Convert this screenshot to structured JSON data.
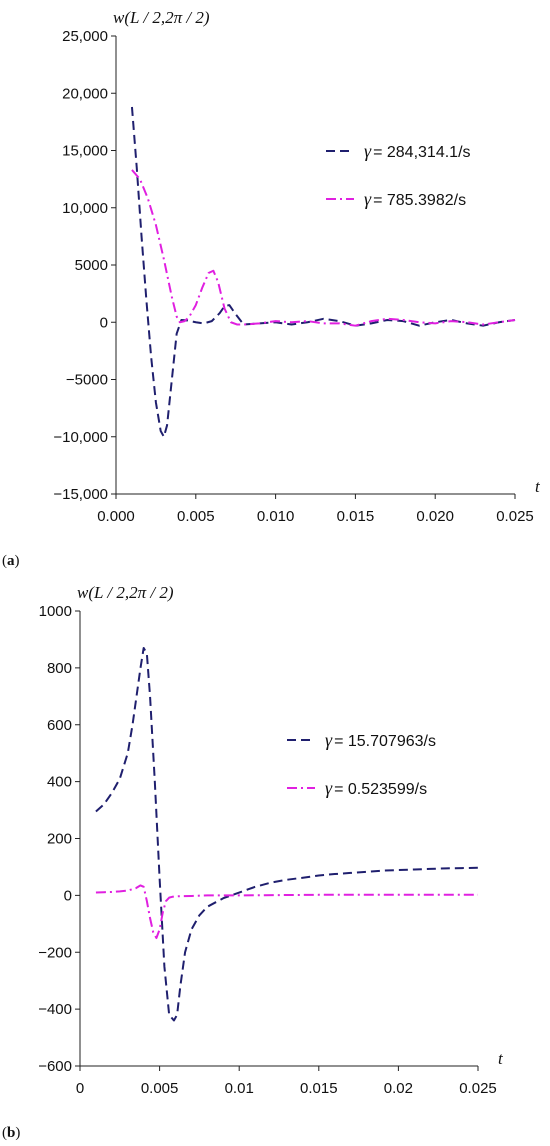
{
  "chart_data": [
    {
      "type": "line",
      "panel": "a",
      "ylabel": "w(L / 2,2π / 2)",
      "xlabel": "t",
      "xlim": [
        0,
        0.025
      ],
      "ylim": [
        -15000,
        25000
      ],
      "xticks": [
        0.0,
        0.005,
        0.01,
        0.015,
        0.02,
        0.025
      ],
      "xtick_labels": [
        "0.000",
        "0.005",
        "0.010",
        "0.015",
        "0.020",
        "0.025"
      ],
      "yticks": [
        -15000,
        -10000,
        -5000,
        0,
        5000,
        10000,
        15000,
        20000,
        25000
      ],
      "ytick_labels": [
        "−15,000",
        "−10,000",
        "−5000",
        "0",
        "5000",
        "10,000",
        "15,000",
        "20,000",
        "25,000"
      ],
      "legend_position": "right",
      "series": [
        {
          "name": "γ = 284,314.1/s",
          "symbol": "γ",
          "label_rest": "= 284,314.1/s",
          "color": "#1f1f6e",
          "dash": "dashed",
          "x": [
            0.001,
            0.0013,
            0.0016,
            0.0019,
            0.0022,
            0.0025,
            0.0028,
            0.003,
            0.0032,
            0.0035,
            0.0038,
            0.0041,
            0.0045,
            0.005,
            0.0055,
            0.006,
            0.0065,
            0.0068,
            0.0071,
            0.0075,
            0.008,
            0.009,
            0.01,
            0.011,
            0.012,
            0.013,
            0.014,
            0.015,
            0.016,
            0.017,
            0.018,
            0.019,
            0.02,
            0.021,
            0.022,
            0.023,
            0.024,
            0.025
          ],
          "y": [
            18800,
            13500,
            7500,
            2000,
            -3000,
            -7000,
            -9500,
            -10000,
            -9000,
            -5000,
            -1000,
            200,
            150,
            0,
            -100,
            100,
            800,
            1400,
            1500,
            700,
            -200,
            -100,
            0,
            -200,
            0,
            300,
            100,
            -300,
            -100,
            200,
            100,
            -300,
            0,
            200,
            -100,
            -300,
            0,
            200
          ]
        },
        {
          "name": "γ = 785.3982/s",
          "symbol": "γ",
          "label_rest": "= 785.3982/s",
          "color": "#e020e0",
          "dash": "dashdot",
          "x": [
            0.001,
            0.0015,
            0.002,
            0.0025,
            0.003,
            0.0035,
            0.0038,
            0.004,
            0.0043,
            0.0046,
            0.005,
            0.0054,
            0.0058,
            0.0061,
            0.0064,
            0.0068,
            0.0072,
            0.0076,
            0.008,
            0.009,
            0.01,
            0.011,
            0.012,
            0.013,
            0.014,
            0.015,
            0.016,
            0.017,
            0.018,
            0.019,
            0.02,
            0.021,
            0.022,
            0.023,
            0.024,
            0.025
          ],
          "y": [
            13300,
            12500,
            10800,
            8500,
            5500,
            2200,
            500,
            0,
            100,
            500,
            1500,
            3000,
            4300,
            4500,
            3500,
            1200,
            0,
            -200,
            -200,
            -100,
            100,
            0,
            100,
            -100,
            -100,
            -300,
            100,
            300,
            200,
            0,
            -100,
            100,
            0,
            -200,
            0,
            200
          ]
        }
      ]
    },
    {
      "type": "line",
      "panel": "b",
      "ylabel": "w(L / 2,2π / 2)",
      "xlabel": "t",
      "xlim": [
        0,
        0.025
      ],
      "ylim": [
        -600,
        1000
      ],
      "xticks": [
        0,
        0.005,
        0.01,
        0.015,
        0.02,
        0.025
      ],
      "xtick_labels": [
        "0",
        "0.005",
        "0.01",
        "0.015",
        "0.02",
        "0.025"
      ],
      "yticks": [
        -600,
        -400,
        -200,
        0,
        200,
        400,
        600,
        800,
        1000
      ],
      "ytick_labels": [
        "−600",
        "−400",
        "−200",
        "0",
        "200",
        "400",
        "600",
        "800",
        "1000"
      ],
      "legend_position": "right",
      "series": [
        {
          "name": "γ = 15.707963/s",
          "symbol": "γ",
          "label_rest": "= 15.707963/s",
          "color": "#1f1f6e",
          "dash": "dashed",
          "x": [
            0.001,
            0.0015,
            0.002,
            0.0025,
            0.003,
            0.0033,
            0.0036,
            0.0038,
            0.004,
            0.0042,
            0.0044,
            0.0047,
            0.005,
            0.0053,
            0.0056,
            0.0059,
            0.0061,
            0.0063,
            0.0066,
            0.007,
            0.0075,
            0.008,
            0.009,
            0.01,
            0.011,
            0.012,
            0.013,
            0.014,
            0.015,
            0.016,
            0.017,
            0.018,
            0.019,
            0.02,
            0.021,
            0.022,
            0.023,
            0.024,
            0.025
          ],
          "y": [
            295,
            320,
            360,
            410,
            500,
            600,
            720,
            800,
            870,
            850,
            700,
            400,
            60,
            -250,
            -420,
            -440,
            -420,
            -320,
            -200,
            -120,
            -70,
            -40,
            -10,
            10,
            30,
            45,
            55,
            62,
            70,
            75,
            79,
            83,
            87,
            89,
            91,
            93,
            95,
            96,
            97
          ]
        },
        {
          "name": "γ = 0.523599/s",
          "symbol": "γ",
          "label_rest": "= 0.523599/s",
          "color": "#e020e0",
          "dash": "dashdot",
          "x": [
            0.001,
            0.0015,
            0.002,
            0.0025,
            0.003,
            0.0035,
            0.0038,
            0.004,
            0.0042,
            0.0044,
            0.0046,
            0.0048,
            0.005,
            0.0052,
            0.0054,
            0.0056,
            0.0058,
            0.0062,
            0.007,
            0.008,
            0.01,
            0.015,
            0.02,
            0.025
          ],
          "y": [
            10,
            11,
            12,
            14,
            17,
            25,
            35,
            30,
            -20,
            -80,
            -130,
            -150,
            -120,
            -60,
            -20,
            -8,
            -5,
            -3,
            -2,
            0,
            0,
            2,
            2,
            2
          ]
        }
      ]
    }
  ]
}
